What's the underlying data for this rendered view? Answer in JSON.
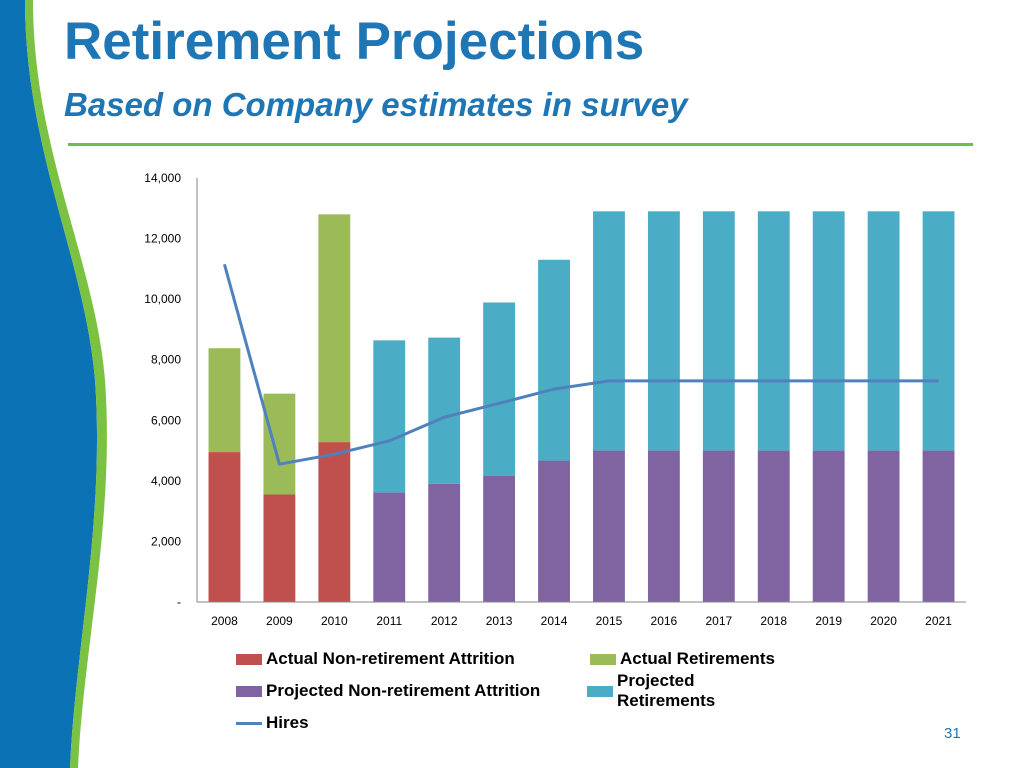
{
  "slide": {
    "title": "Retirement Projections",
    "subtitle": "Based on Company estimates in survey",
    "page_number": "31",
    "colors": {
      "title": "#1F76B5",
      "rule": "#6BBF4A",
      "left_band_blue": "#0B72B5",
      "left_band_green": "#7CC242"
    }
  },
  "chart_data": {
    "type": "bar",
    "stacked": true,
    "categories": [
      "2008",
      "2009",
      "2010",
      "2011",
      "2012",
      "2013",
      "2014",
      "2015",
      "2016",
      "2017",
      "2018",
      "2019",
      "2020",
      "2021"
    ],
    "ylim": [
      0,
      14000
    ],
    "yticks": [
      0,
      2000,
      4000,
      6000,
      8000,
      10000,
      12000,
      14000
    ],
    "ytick_labels": [
      "-",
      "2,000",
      "4,000",
      "6,000",
      "8,000",
      "10,000",
      "12,000",
      "14,000"
    ],
    "grid": false,
    "legend_position": "bottom",
    "series": [
      {
        "name": "Actual Non-retirement Attrition",
        "color": "#C0504D",
        "values": [
          4950,
          3550,
          5280,
          0,
          0,
          0,
          0,
          0,
          0,
          0,
          0,
          0,
          0,
          0
        ]
      },
      {
        "name": "Actual Retirements",
        "color": "#9BBB59",
        "values": [
          3430,
          3330,
          7520,
          0,
          0,
          0,
          0,
          0,
          0,
          0,
          0,
          0,
          0,
          0
        ]
      },
      {
        "name": "Projected Non-retirement Attrition",
        "color": "#8064A2",
        "values": [
          0,
          0,
          0,
          3620,
          3900,
          4160,
          4670,
          5000,
          5000,
          5000,
          5000,
          5000,
          5000,
          5000
        ]
      },
      {
        "name": "Projected Retirements",
        "color": "#4BACC6",
        "values": [
          0,
          0,
          0,
          5020,
          4830,
          5730,
          6630,
          7900,
          7900,
          7900,
          7900,
          7900,
          7900,
          7900
        ]
      }
    ],
    "line_series": {
      "name": "Hires",
      "color": "#4F81BD",
      "values": [
        11150,
        4550,
        4880,
        5320,
        6100,
        6560,
        7030,
        7300,
        7300,
        7300,
        7300,
        7300,
        7300,
        7300
      ]
    }
  }
}
